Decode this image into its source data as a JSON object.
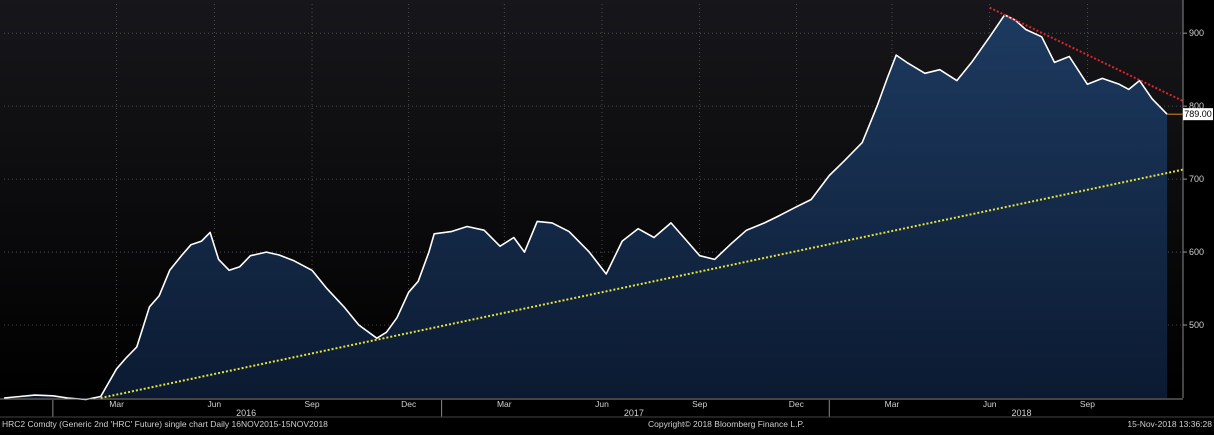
{
  "footer": {
    "left": "HRC2 Comdty (Generic 2nd 'HRC' Future) single chart  Daily 16NOV2015-15NOV2018",
    "center": "Copyright© 2018 Bloomberg Finance L.P.",
    "right": "15-Nov-2018 13:36:28"
  },
  "colors": {
    "background": "#000000",
    "plot_top": "#17171b",
    "price_line": "#ffffff",
    "area_top": "#1d3a60",
    "area_bottom": "#0b1a31",
    "support": "#e3e33a",
    "resistance": "#e0232a",
    "last_marker": "#e08a1a",
    "axis_text": "#cfcfcf",
    "grid": "#5a5a5a"
  },
  "chart_data": {
    "type": "area",
    "title": "",
    "xlabel": "",
    "ylabel": "",
    "ylim": [
      400,
      940
    ],
    "xlim": [
      "2015-11-16",
      "2018-11-30"
    ],
    "grid": true,
    "y_ticks": [
      900,
      800,
      700,
      600,
      500
    ],
    "y_tick_labels": [
      "900",
      "800",
      "700",
      "600",
      "500"
    ],
    "x_month_ticks": [
      {
        "label": "Mar",
        "date": "2016-03-01"
      },
      {
        "label": "Jun",
        "date": "2016-06-01"
      },
      {
        "label": "Sep",
        "date": "2016-09-01"
      },
      {
        "label": "Dec",
        "date": "2016-12-01"
      },
      {
        "label": "Mar",
        "date": "2017-03-01"
      },
      {
        "label": "Jun",
        "date": "2017-06-01"
      },
      {
        "label": "Sep",
        "date": "2017-09-01"
      },
      {
        "label": "Dec",
        "date": "2017-12-01"
      },
      {
        "label": "Mar",
        "date": "2018-03-01"
      },
      {
        "label": "Jun",
        "date": "2018-06-01"
      },
      {
        "label": "Sep",
        "date": "2018-09-01"
      }
    ],
    "x_year_labels": [
      {
        "label": "2016",
        "date": "2016-07-01"
      },
      {
        "label": "2017",
        "date": "2017-07-01"
      },
      {
        "label": "2018",
        "date": "2018-07-01"
      }
    ],
    "year_dividers": [
      "2016-01-01",
      "2017-01-01",
      "2018-01-01"
    ],
    "last_value": 789,
    "last_value_label": "789.00",
    "series": [
      {
        "values": [
          [
            "2015-11-16",
            400
          ],
          [
            "2015-12-01",
            402
          ],
          [
            "2015-12-15",
            404
          ],
          [
            "2016-01-01",
            403
          ],
          [
            "2016-01-15",
            400
          ],
          [
            "2016-02-01",
            398
          ],
          [
            "2016-02-15",
            402
          ],
          [
            "2016-03-01",
            440
          ],
          [
            "2016-03-10",
            455
          ],
          [
            "2016-03-20",
            470
          ],
          [
            "2016-04-01",
            525
          ],
          [
            "2016-04-10",
            540
          ],
          [
            "2016-04-20",
            575
          ],
          [
            "2016-05-01",
            595
          ],
          [
            "2016-05-10",
            610
          ],
          [
            "2016-05-20",
            615
          ],
          [
            "2016-05-28",
            627
          ],
          [
            "2016-06-05",
            590
          ],
          [
            "2016-06-15",
            575
          ],
          [
            "2016-06-25",
            580
          ],
          [
            "2016-07-05",
            595
          ],
          [
            "2016-07-20",
            600
          ],
          [
            "2016-08-01",
            596
          ],
          [
            "2016-08-15",
            588
          ],
          [
            "2016-09-01",
            575
          ],
          [
            "2016-09-15",
            550
          ],
          [
            "2016-10-01",
            525
          ],
          [
            "2016-10-15",
            500
          ],
          [
            "2016-11-01",
            482
          ],
          [
            "2016-11-10",
            490
          ],
          [
            "2016-11-20",
            510
          ],
          [
            "2016-12-01",
            545
          ],
          [
            "2016-12-10",
            560
          ],
          [
            "2016-12-20",
            600
          ],
          [
            "2016-12-25",
            625
          ],
          [
            "2017-01-10",
            628
          ],
          [
            "2017-01-25",
            635
          ],
          [
            "2017-02-10",
            630
          ],
          [
            "2017-02-25",
            608
          ],
          [
            "2017-03-10",
            620
          ],
          [
            "2017-03-20",
            600
          ],
          [
            "2017-04-01",
            642
          ],
          [
            "2017-04-15",
            640
          ],
          [
            "2017-05-01",
            628
          ],
          [
            "2017-05-20",
            600
          ],
          [
            "2017-06-05",
            570
          ],
          [
            "2017-06-20",
            615
          ],
          [
            "2017-07-05",
            632
          ],
          [
            "2017-07-20",
            620
          ],
          [
            "2017-08-05",
            640
          ],
          [
            "2017-08-20",
            615
          ],
          [
            "2017-09-01",
            595
          ],
          [
            "2017-09-15",
            590
          ],
          [
            "2017-10-01",
            612
          ],
          [
            "2017-10-15",
            630
          ],
          [
            "2017-11-01",
            640
          ],
          [
            "2017-11-15",
            650
          ],
          [
            "2017-12-01",
            662
          ],
          [
            "2017-12-15",
            672
          ],
          [
            "2018-01-01",
            705
          ],
          [
            "2018-01-15",
            725
          ],
          [
            "2018-02-01",
            750
          ],
          [
            "2018-02-15",
            800
          ],
          [
            "2018-02-25",
            840
          ],
          [
            "2018-03-05",
            870
          ],
          [
            "2018-03-15",
            860
          ],
          [
            "2018-04-01",
            845
          ],
          [
            "2018-04-15",
            850
          ],
          [
            "2018-05-01",
            835
          ],
          [
            "2018-05-15",
            860
          ],
          [
            "2018-06-01",
            895
          ],
          [
            "2018-06-15",
            925
          ],
          [
            "2018-06-25",
            918
          ],
          [
            "2018-07-05",
            905
          ],
          [
            "2018-07-20",
            895
          ],
          [
            "2018-08-01",
            860
          ],
          [
            "2018-08-15",
            868
          ],
          [
            "2018-09-01",
            830
          ],
          [
            "2018-09-15",
            838
          ],
          [
            "2018-10-01",
            830
          ],
          [
            "2018-10-10",
            823
          ],
          [
            "2018-10-20",
            835
          ],
          [
            "2018-11-01",
            810
          ],
          [
            "2018-11-15",
            789
          ]
        ]
      }
    ],
    "trendlines": [
      {
        "kind": "support",
        "from": [
          "2016-02-15",
          400
        ],
        "to": [
          "2018-11-30",
          713
        ]
      },
      {
        "kind": "resistance",
        "from": [
          "2018-06-01",
          935
        ],
        "to": [
          "2018-11-30",
          807
        ]
      }
    ]
  }
}
